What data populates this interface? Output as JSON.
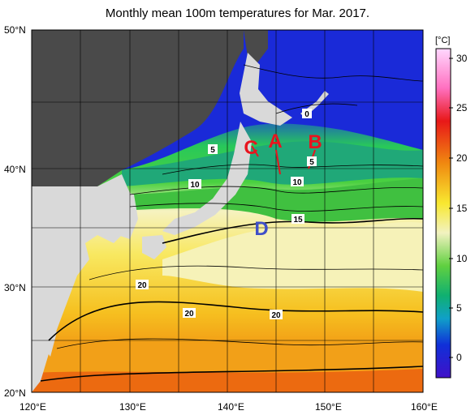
{
  "title": "Monthly mean 100m temperatures for Mar. 2017.",
  "lat_labels": [
    "50°N",
    "40°N",
    "30°N",
    "20°N"
  ],
  "lon_labels": [
    "120°E",
    "130°E",
    "140°E",
    "150°E",
    "160°E"
  ],
  "colorbar": {
    "unit": "[°C]",
    "ticks": [
      "30",
      "25",
      "20",
      "15",
      "10",
      "5",
      "0"
    ]
  },
  "contour_labels": [
    "0",
    "5",
    "5",
    "10",
    "10",
    "15",
    "20",
    "20",
    "20"
  ],
  "markers": [
    "A",
    "B",
    "C",
    "D"
  ],
  "colors": {
    "land": "#d9d9d9",
    "no_data": "#4a4a4a",
    "marker_red": "#e8141e",
    "marker_blue": "#3f4fc8"
  }
}
